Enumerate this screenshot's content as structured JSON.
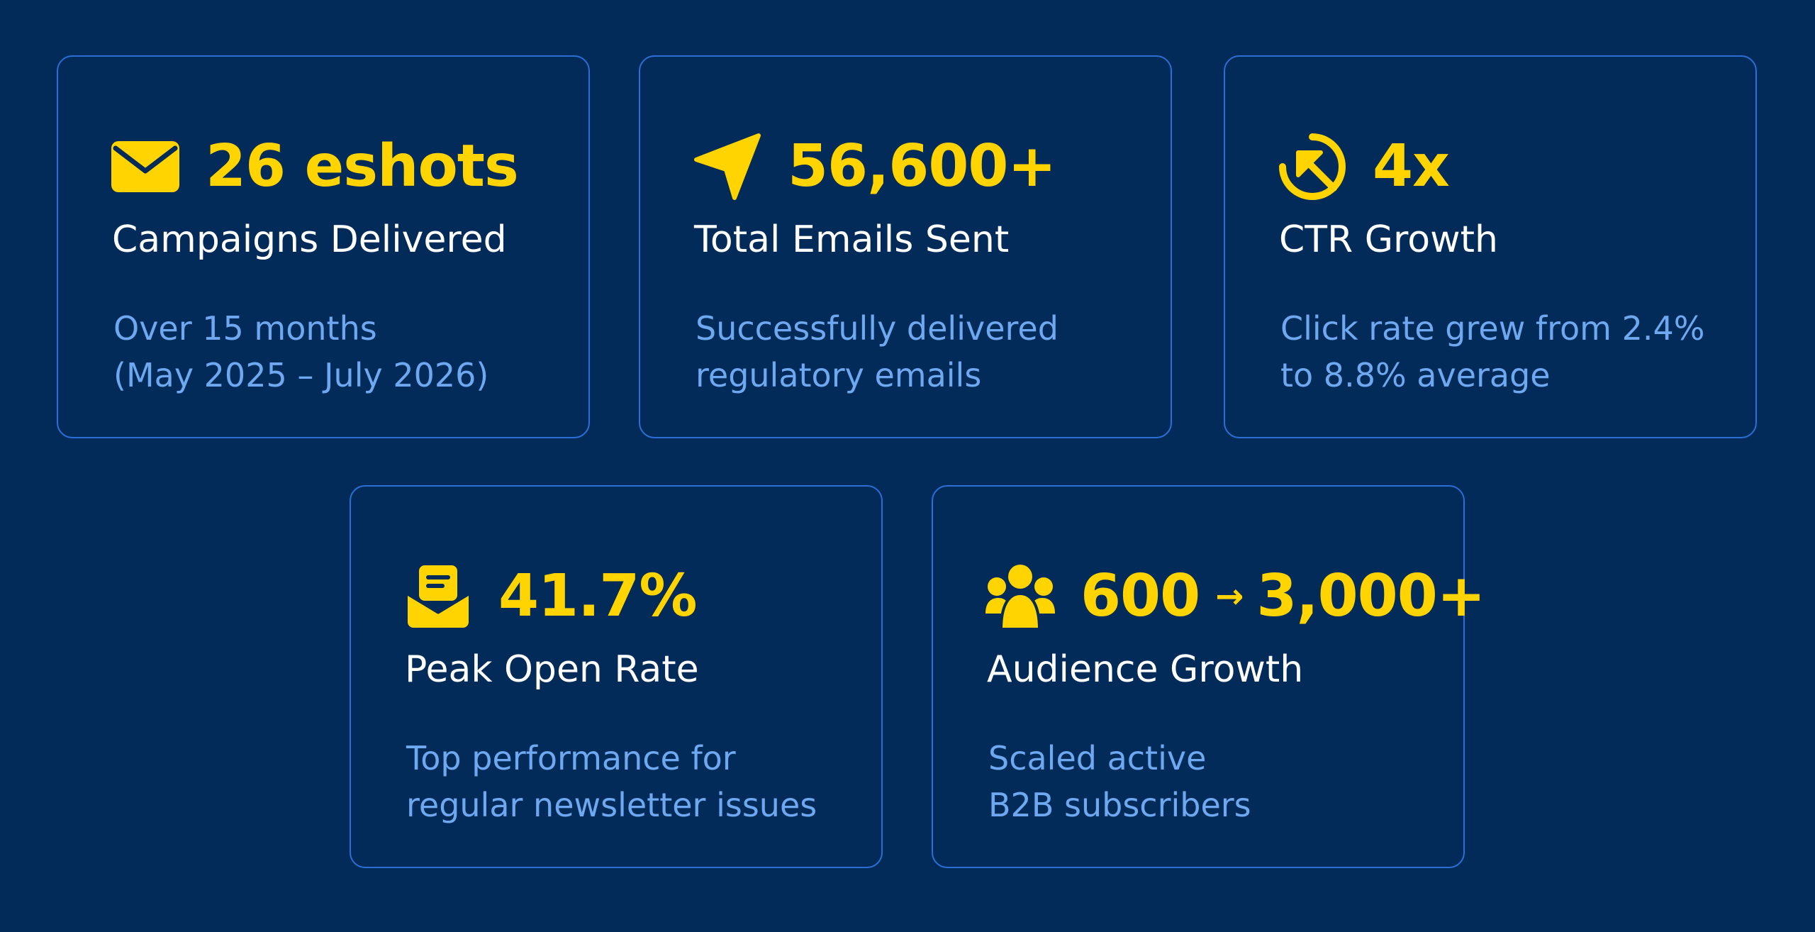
{
  "cards": [
    {
      "icon": "envelope-icon",
      "value": "26 eshots",
      "title": "Campaigns Delivered",
      "description": [
        "Over 15 months",
        "(May 2025 – July 2026)"
      ]
    },
    {
      "icon": "paper-plane-icon",
      "value": "56,600+",
      "title": "Total Emails Sent",
      "description": [
        "Successfully delivered",
        "regulatory emails"
      ]
    },
    {
      "icon": "click-cursor-icon",
      "value": "4x",
      "title": "CTR Growth",
      "description": [
        "Click rate grew from 2.4%",
        "to 8.8% average"
      ]
    },
    {
      "icon": "open-envelope-icon",
      "value": "41.7%",
      "title": "Peak Open Rate",
      "description": [
        "Top performance for",
        "regular newsletter issues"
      ]
    },
    {
      "icon": "users-group-icon",
      "value_from": "600",
      "value_arrow": "→",
      "value_to": "3,000+",
      "title": "Audience Growth",
      "description": [
        "Scaled active",
        "B2B subscribers"
      ]
    }
  ],
  "colors": {
    "background": "#032b59",
    "card_border": "#2a6fd6",
    "accent": "#ffd400",
    "title": "#ffffff",
    "description": "#6ea8f0"
  }
}
